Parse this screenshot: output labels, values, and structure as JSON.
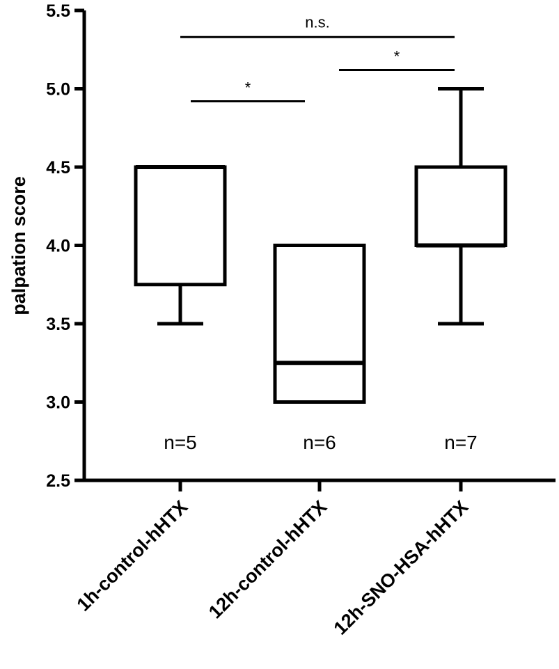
{
  "chart_data": {
    "type": "boxplot",
    "title": "",
    "xlabel": "",
    "ylabel": "palpation score",
    "ylim": [
      2.5,
      5.5
    ],
    "yticks": [
      "2.5",
      "3.0",
      "3.5",
      "4.0",
      "4.5",
      "5.0",
      "5.5"
    ],
    "grid": false,
    "legend": "none",
    "categories": [
      "1h-control-hHTX",
      "12h-control-hHTX",
      "12h-SNO-HSA-hHTX"
    ],
    "boxes": [
      {
        "category": "1h-control-hHTX",
        "min": 3.5,
        "q1": 3.75,
        "median": 4.5,
        "q3": 4.5,
        "max": 4.5,
        "n_label": "n=5"
      },
      {
        "category": "12h-control-hHTX",
        "min": 3.0,
        "q1": 3.0,
        "median": 3.25,
        "q3": 4.0,
        "max": 4.0,
        "n_label": "n=6"
      },
      {
        "category": "12h-SNO-HSA-hHTX",
        "min": 3.5,
        "q1": 4.0,
        "median": 4.0,
        "q3": 4.5,
        "max": 5.0,
        "n_label": "n=7"
      }
    ],
    "annotations": [
      {
        "label": "*",
        "from": "1h-control-hHTX",
        "to": "12h-control-hHTX",
        "y": 4.92
      },
      {
        "label": "*",
        "from": "12h-control-hHTX",
        "to": "12h-SNO-HSA-hHTX",
        "y": 5.12
      },
      {
        "label": "n.s.",
        "from": "1h-control-hHTX",
        "to": "12h-SNO-HSA-hHTX",
        "y": 5.33
      }
    ]
  }
}
